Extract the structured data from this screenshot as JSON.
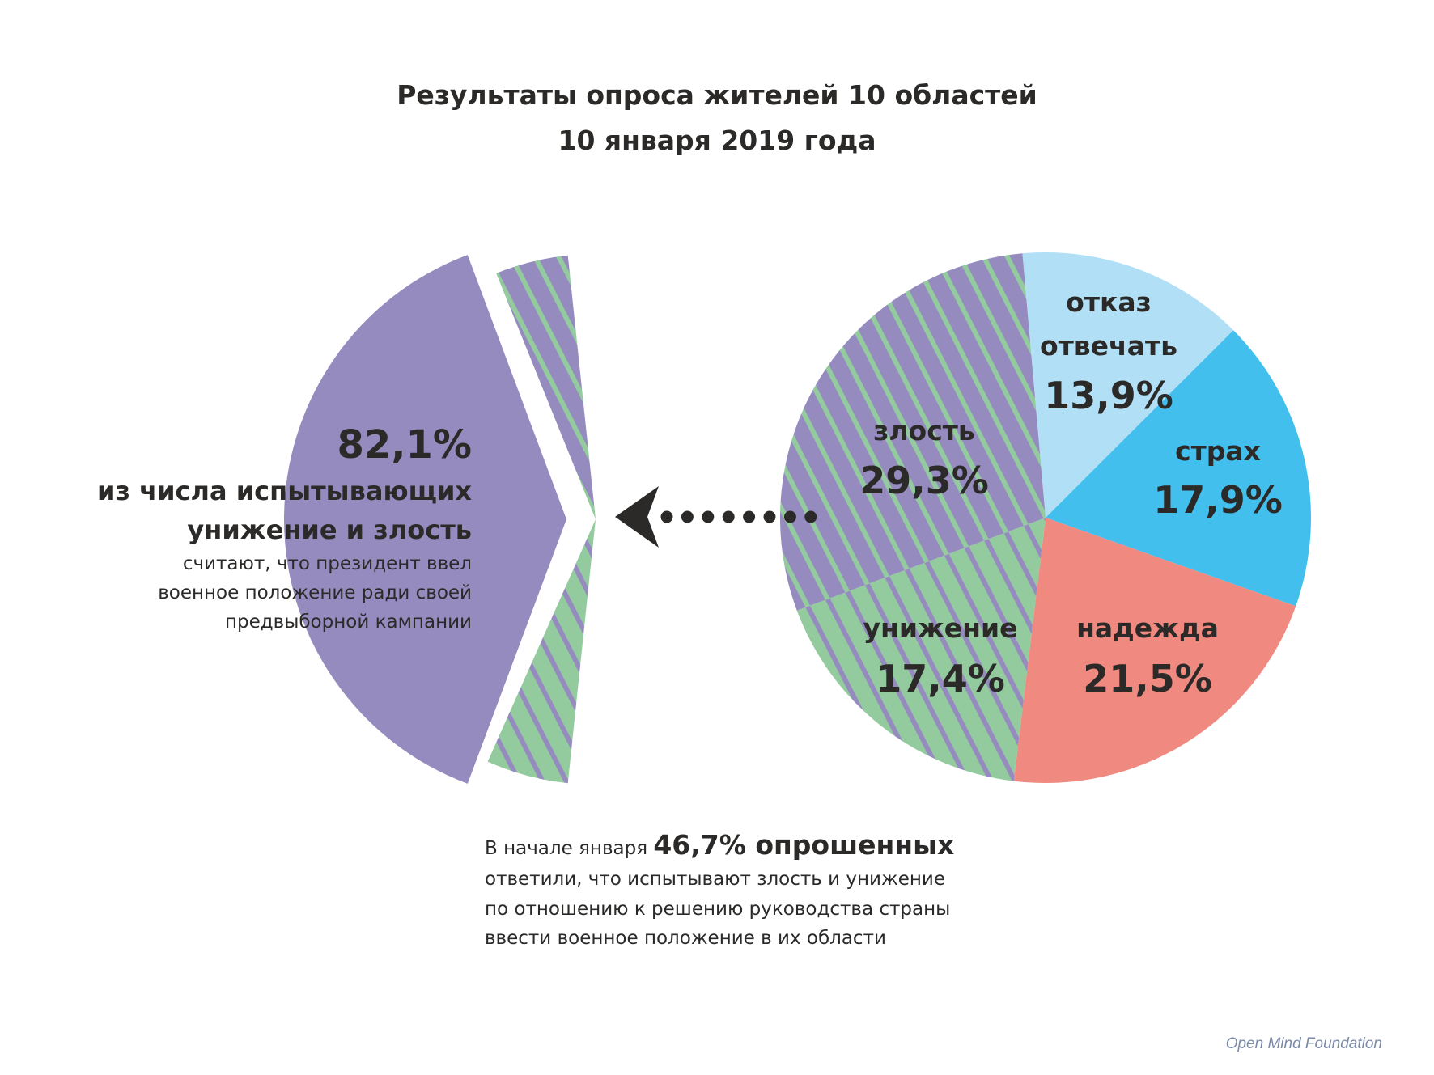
{
  "title": {
    "line1": "Результаты опроса жителей 10 областей",
    "line2": "10 января 2019 года"
  },
  "chart_data": {
    "type": "pie",
    "title": "Результаты опроса жителей 10 областей, 10 января 2019 года",
    "slices": [
      {
        "label": "отказ",
        "label2": "отвечать",
        "value": 13.9,
        "value_label": "13,9%",
        "color": "#b1e0f6",
        "fill": "solid"
      },
      {
        "label": "страх",
        "value": 17.9,
        "value_label": "17,9%",
        "color": "#43bfee",
        "fill": "solid"
      },
      {
        "label": "надежда",
        "value": 21.5,
        "value_label": "21,5%",
        "color": "#f08a80",
        "fill": "solid"
      },
      {
        "label": "унижение",
        "value": 17.4,
        "value_label": "17,4%",
        "color": "#93cb9f",
        "fill": "hatch-green"
      },
      {
        "label": "злость",
        "value": 29.3,
        "value_label": "29,3%",
        "color": "#958bbf",
        "fill": "hatch-purple"
      }
    ],
    "breakdown": {
      "value": 82.1,
      "value_label": "82,1%",
      "heading1": "из числа испытывающих",
      "heading2": "унижение и злость",
      "body": [
        "считают, что президент ввел",
        "военное положение ради своей",
        "предвыборной кампании"
      ]
    }
  },
  "note": {
    "prefix": "В начале января",
    "highlight": "46,7% опрошенных",
    "lines": [
      "ответили, что испытывают злость и унижение",
      "по отношению к решению руководства страны",
      "ввести военное положение в их области"
    ]
  },
  "colors": {
    "purple": "#958bbf",
    "green": "#93cb9f",
    "text": "#2b2a29"
  },
  "footer": "Open Mind Foundation"
}
